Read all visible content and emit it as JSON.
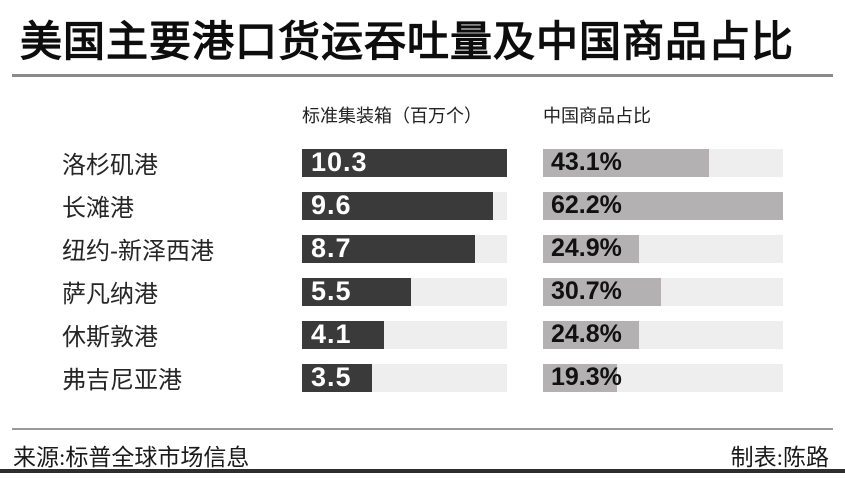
{
  "title": "美国主要港口货运吞吐量及中国商品占比",
  "columns": {
    "left_header": "标准集装箱（百万个）",
    "right_header": "中国商品占比"
  },
  "footer": {
    "source": "来源:标普全球市场信息",
    "credit": "制表:陈路"
  },
  "colors": {
    "dark_bar": "#3a3a3a",
    "gray_bar": "#b3b1b1",
    "bar_track": "#efeeee",
    "divider": "#8a8a8a",
    "bottom_rule": "#2e2e2e"
  },
  "chart_data": {
    "type": "bar",
    "title": "美国主要港口货运吞吐量及中国商品占比",
    "categories": [
      "洛杉矶港",
      "长滩港",
      "纽约-新泽西港",
      "萨凡纳港",
      "休斯敦港",
      "弗吉尼亚港"
    ],
    "series": [
      {
        "name": "标准集装箱（百万个）",
        "values": [
          10.3,
          9.6,
          8.7,
          5.5,
          4.1,
          3.5
        ],
        "labels": [
          "10.3",
          "9.6",
          "8.7",
          "5.5",
          "4.1",
          "3.5"
        ],
        "scale_max": 10.3
      },
      {
        "name": "中国商品占比",
        "values": [
          43.1,
          62.2,
          24.9,
          30.7,
          24.8,
          19.3
        ],
        "labels": [
          "43.1%",
          "62.2%",
          "24.9%",
          "30.7%",
          "24.8%",
          "19.3%"
        ],
        "unit": "%",
        "scale_max": 62.2
      }
    ],
    "legend_position": "none",
    "grid": false,
    "source": "标普全球市场信息",
    "credit": "陈路"
  }
}
